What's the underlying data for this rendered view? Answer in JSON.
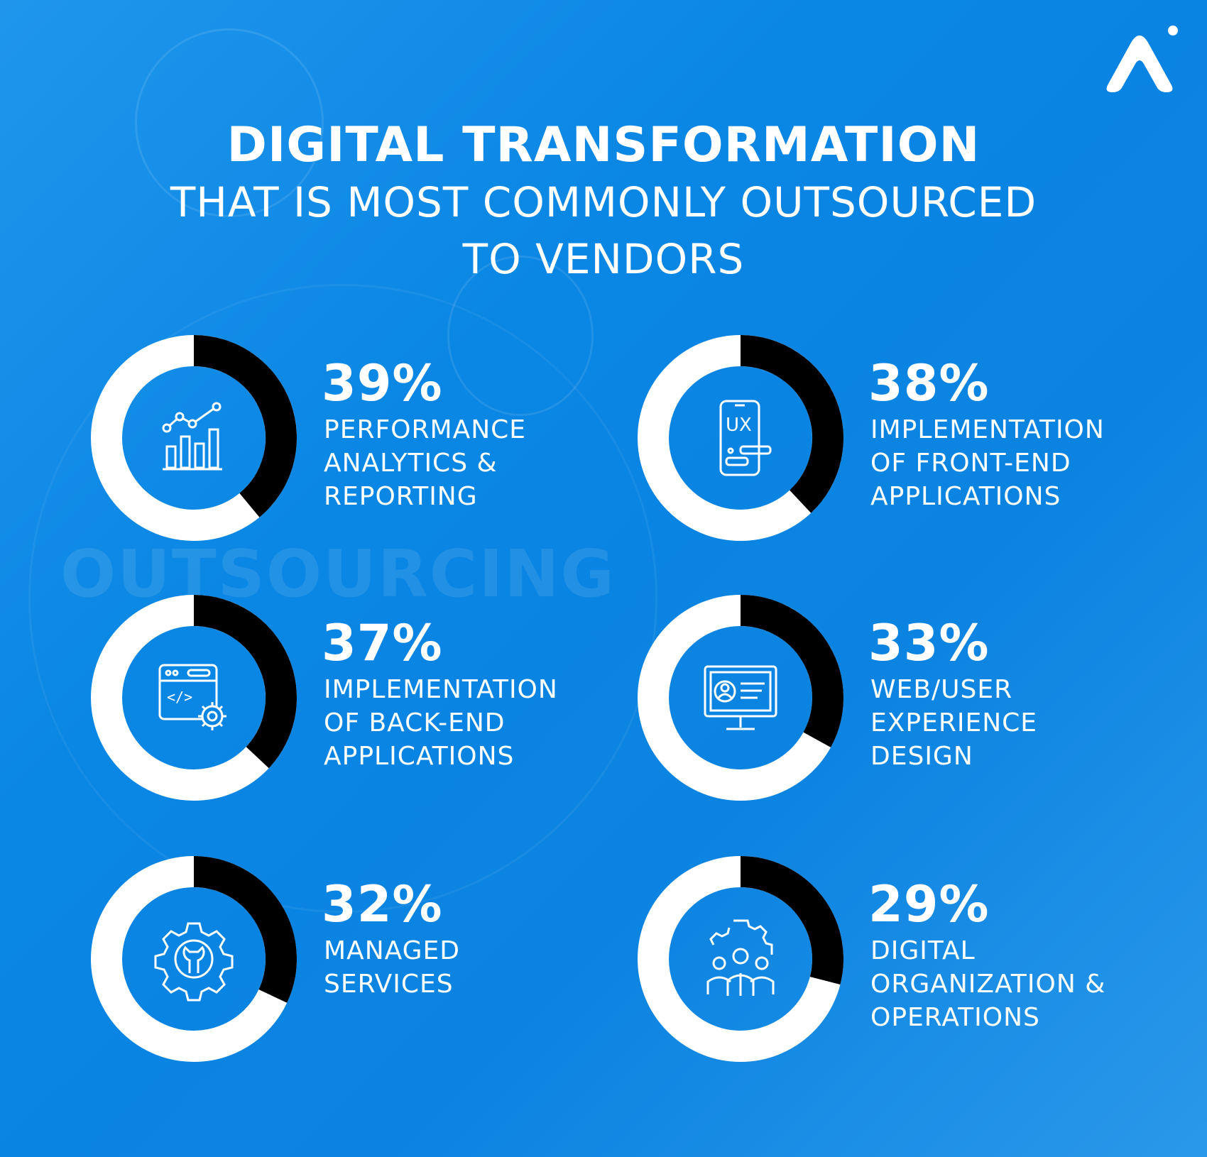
{
  "title": {
    "line1": "DIGITAL TRANSFORMATION",
    "line2": "THAT IS MOST COMMONLY OUTSOURCED",
    "line3": "TO VENDORS"
  },
  "background_text": "OUTSOURCING",
  "colors": {
    "background": "#0b84e2",
    "ring_empty": "#ffffff",
    "ring_filled": "#000000",
    "text": "#ffffff"
  },
  "chart_data": {
    "type": "donut",
    "items": [
      {
        "value": 39,
        "value_label": "39%",
        "label": [
          "PERFORMANCE",
          "ANALYTICS &",
          "REPORTING"
        ],
        "icon": "analytics-chart-icon"
      },
      {
        "value": 38,
        "value_label": "38%",
        "label": [
          "IMPLEMENTATION",
          "OF FRONT-END",
          "APPLICATIONS"
        ],
        "icon": "ux-phone-icon"
      },
      {
        "value": 37,
        "value_label": "37%",
        "label": [
          "IMPLEMENTATION",
          "OF BACK-END",
          "APPLICATIONS"
        ],
        "icon": "code-window-gear-icon"
      },
      {
        "value": 33,
        "value_label": "33%",
        "label": [
          "WEB/USER",
          "EXPERIENCE",
          "DESIGN"
        ],
        "icon": "monitor-profile-icon"
      },
      {
        "value": 32,
        "value_label": "32%",
        "label": [
          "MANAGED",
          "SERVICES"
        ],
        "icon": "gear-wrench-icon"
      },
      {
        "value": 29,
        "value_label": "29%",
        "label": [
          "DIGITAL",
          "ORGANIZATION &",
          "OPERATIONS"
        ],
        "icon": "team-gear-icon"
      }
    ]
  }
}
